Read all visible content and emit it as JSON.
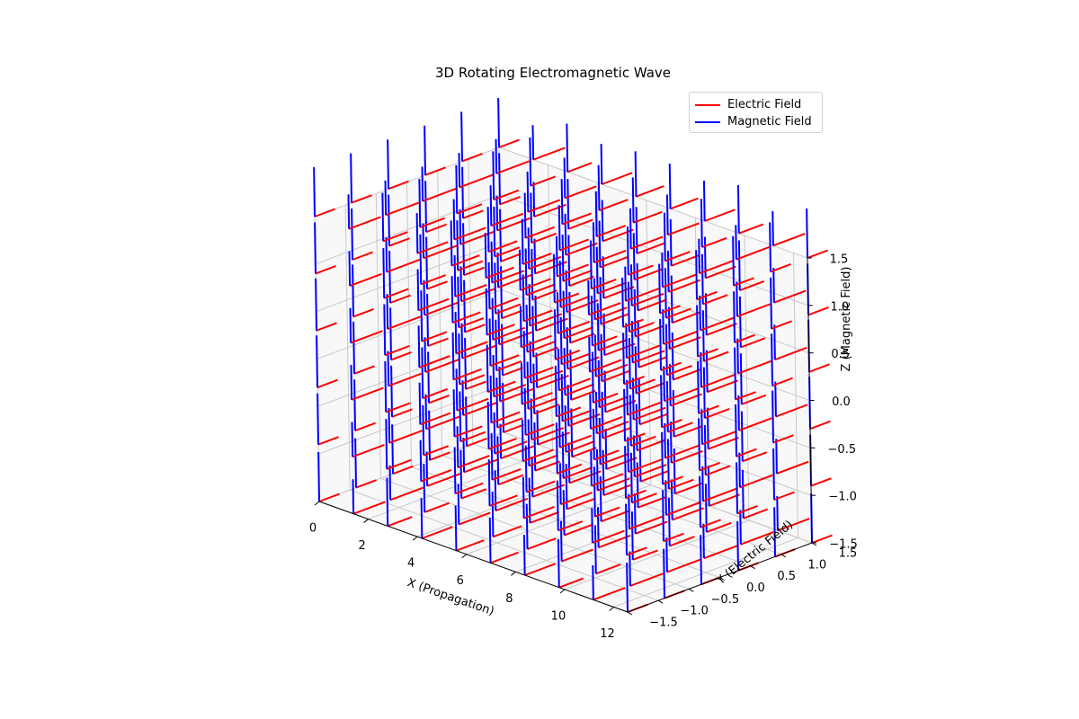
{
  "chart_data": {
    "type": "quiver3d",
    "title": "3D Rotating Electromagnetic Wave",
    "xlabel": "X (Propagation)",
    "ylabel": "Y (Electric Field)",
    "zlabel": "Z (Magnetic Field)",
    "xlim": [
      0,
      12.566
    ],
    "ylim": [
      -1.5,
      1.5
    ],
    "zlim": [
      -1.5,
      1.5
    ],
    "x_ticks": [
      "0",
      "2",
      "4",
      "6",
      "8",
      "10",
      "12"
    ],
    "y_ticks": [
      "−1.5",
      "−1.0",
      "−0.5",
      "0.0",
      "0.5",
      "1.0",
      "1.5"
    ],
    "z_ticks": [
      "−1.5",
      "−1.0",
      "−0.5",
      "0.0",
      "0.5",
      "1.0",
      "1.5"
    ],
    "grid": true,
    "legend_position": "top-right",
    "series": [
      {
        "name": "Electric Field",
        "color": "#ff0000",
        "direction": "y"
      },
      {
        "name": "Magnetic Field",
        "color": "#0000ff",
        "direction": "z"
      }
    ],
    "sample_grid": {
      "x_count": 10,
      "y_values": [
        -1.5,
        -0.9,
        -0.3,
        0.3,
        0.9,
        1.5
      ],
      "z_values": [
        -1.5,
        -0.9,
        -0.3,
        0.3,
        0.9,
        1.5
      ]
    }
  }
}
